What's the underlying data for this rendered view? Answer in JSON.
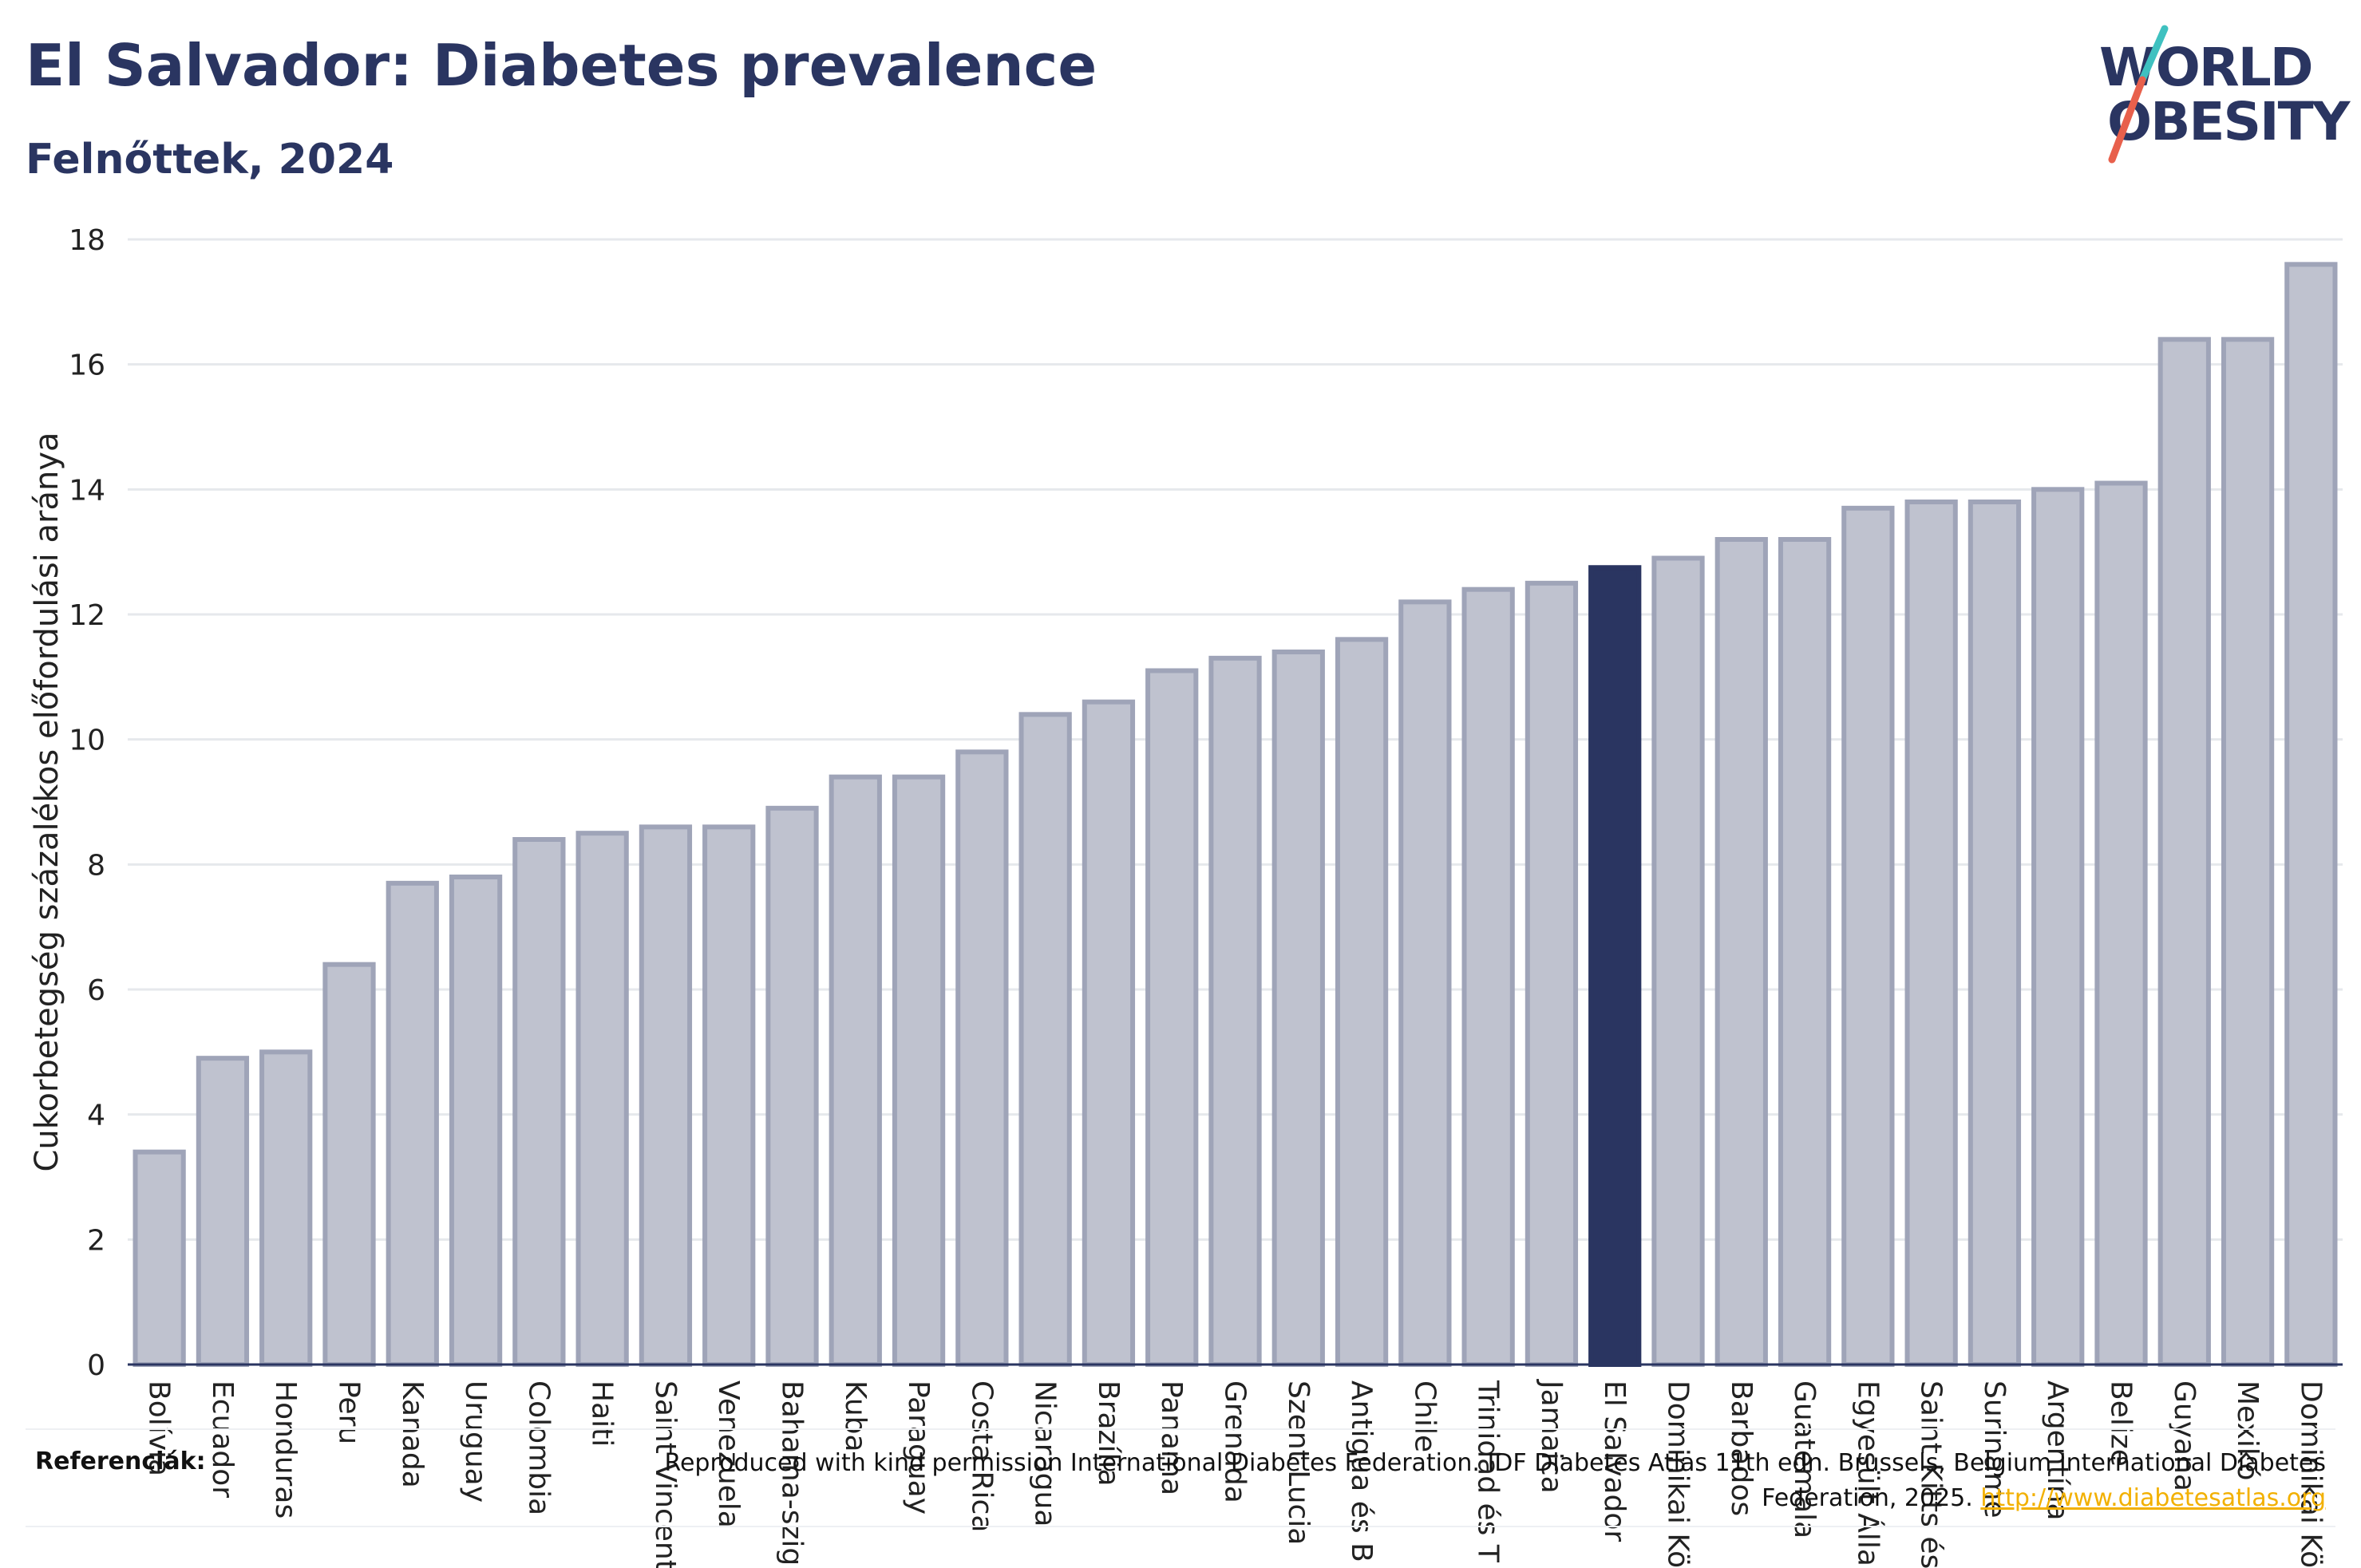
{
  "header": {
    "title": "El Salvador: Diabetes prevalence",
    "subtitle": "Felnőttek, 2024"
  },
  "logo": {
    "line1": "WORLD",
    "line2": "OBESITY",
    "accent_teal": "#3fc1c0",
    "accent_red": "#e8604c"
  },
  "footer": {
    "label": "Referenciák:",
    "text": "Reproduced with kind permission International Diabetes Federation. IDF Diabetes Atlas 11th edn. Brussels, Belgium International Diabetes Federation, 2025.",
    "link": "http://www.diabetesatlas.org"
  },
  "chart_data": {
    "type": "bar",
    "title": "El Salvador: Diabetes prevalence",
    "subtitle": "Felnőttek, 2024",
    "xlabel": "",
    "ylabel": "Cukorbetegség százalékos előfordulási aránya",
    "ylim": [
      0,
      18
    ],
    "yticks": [
      0,
      2,
      4,
      6,
      8,
      10,
      12,
      14,
      16,
      18
    ],
    "grid": true,
    "highlight_category": "El Salvador",
    "colors": {
      "bar": "#bfc2cf",
      "bar_edge": "#9fa4b8",
      "highlight": "#2a3561",
      "grid": "#e6e8ec",
      "axis": "#2a3561"
    },
    "categories": [
      "Bolívia",
      "Ecuador",
      "Honduras",
      "Peru",
      "Kanada",
      "Uruguay",
      "Colombia",
      "Haiti",
      "Saint Vincent",
      "Venezuela",
      "Bahama-szig",
      "Kuba",
      "Paraguay",
      "Costa Rica",
      "Nicaragua",
      "Brazília",
      "Panama",
      "Grenada",
      "Szent Lucia",
      "Antigua és B",
      "Chile",
      "Trinidad és T",
      "Jamaica",
      "El Salvador",
      "Dominikai Kö",
      "Barbados",
      "Guatemala",
      "Egyesült Álla",
      "Saint Kitts és",
      "Suriname",
      "Argentína",
      "Belize",
      "Guyana",
      "Mexikó",
      "Dominikai Kö"
    ],
    "values": [
      3.4,
      4.9,
      5.0,
      6.4,
      7.7,
      7.8,
      8.4,
      8.5,
      8.6,
      8.6,
      8.9,
      9.4,
      9.4,
      9.8,
      10.4,
      10.6,
      11.1,
      11.3,
      11.4,
      11.6,
      12.2,
      12.4,
      12.5,
      12.75,
      12.9,
      13.2,
      13.2,
      13.7,
      13.8,
      13.8,
      14.0,
      14.1,
      16.4,
      16.4,
      17.6
    ]
  }
}
